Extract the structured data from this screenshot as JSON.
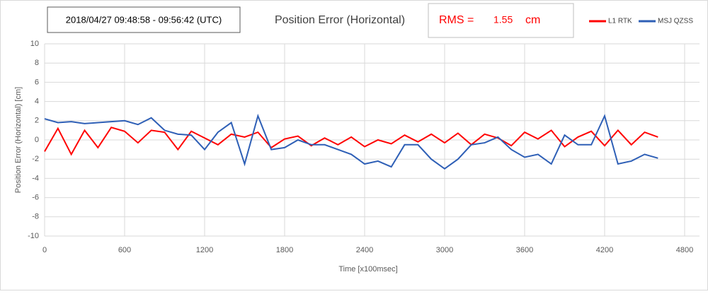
{
  "chart_data": {
    "type": "line",
    "title": "Position Error (Horizontal)",
    "period": "2018/04/27 09:48:58 - 09:56:42 (UTC)",
    "rms_label": "RMS =",
    "rms_value": 1.55,
    "rms_unit": "cm",
    "x_label": "Time [x100msec]",
    "y_label": "Position Error (Horizontal) [cm]",
    "x": [
      0,
      100,
      200,
      300,
      400,
      500,
      600,
      700,
      800,
      900,
      1000,
      1100,
      1200,
      1300,
      1400,
      1500,
      1600,
      1700,
      1800,
      1900,
      2000,
      2100,
      2200,
      2300,
      2400,
      2500,
      2600,
      2700,
      2800,
      2900,
      3000,
      3100,
      3200,
      3300,
      3400,
      3500,
      3600,
      3700,
      3800,
      3900,
      4000,
      4100,
      4200,
      4300,
      4400,
      4500,
      4600
    ],
    "series": [
      {
        "name": "L1 RTK",
        "color": "#ff0000",
        "values": [
          -1.2,
          1.2,
          -1.5,
          1.0,
          -0.8,
          1.3,
          0.9,
          -0.3,
          1.0,
          0.8,
          -1.0,
          0.9,
          0.2,
          -0.5,
          0.6,
          0.3,
          0.8,
          -0.8,
          0.1,
          0.4,
          -0.6,
          0.2,
          -0.5,
          0.3,
          -0.7,
          0.0,
          -0.4,
          0.5,
          -0.2,
          0.6,
          -0.3,
          0.7,
          -0.5,
          0.6,
          0.2,
          -0.6,
          0.8,
          0.1,
          1.0,
          -0.7,
          0.3,
          0.9,
          -0.6,
          1.0,
          -0.5,
          0.8,
          0.3
        ]
      },
      {
        "name": "MSJ QZSS",
        "color": "#2e5fb6",
        "values": [
          2.2,
          1.8,
          1.9,
          1.7,
          1.8,
          1.9,
          2.0,
          1.6,
          2.3,
          1.0,
          0.6,
          0.5,
          -1.0,
          0.8,
          1.8,
          -2.5,
          2.5,
          -1.0,
          -0.8,
          0.0,
          -0.5,
          -0.5,
          -1.0,
          -1.5,
          -2.5,
          -2.2,
          -2.8,
          -0.5,
          -0.5,
          -2.0,
          -3.0,
          -2.0,
          -0.5,
          -0.3,
          0.3,
          -1.0,
          -1.8,
          -1.5,
          -2.5,
          0.5,
          -0.5,
          -0.5,
          2.5,
          -2.5,
          -2.2,
          -1.5,
          -1.9
        ]
      }
    ],
    "xlim": [
      0,
      4800
    ],
    "ylim": [
      -10,
      10
    ],
    "xticks": [
      0,
      600,
      1200,
      1800,
      2400,
      3000,
      3600,
      4200,
      4800
    ],
    "yticks": [
      -10,
      -8,
      -6,
      -4,
      -2,
      0,
      2,
      4,
      6,
      8,
      10
    ],
    "grid": true
  }
}
